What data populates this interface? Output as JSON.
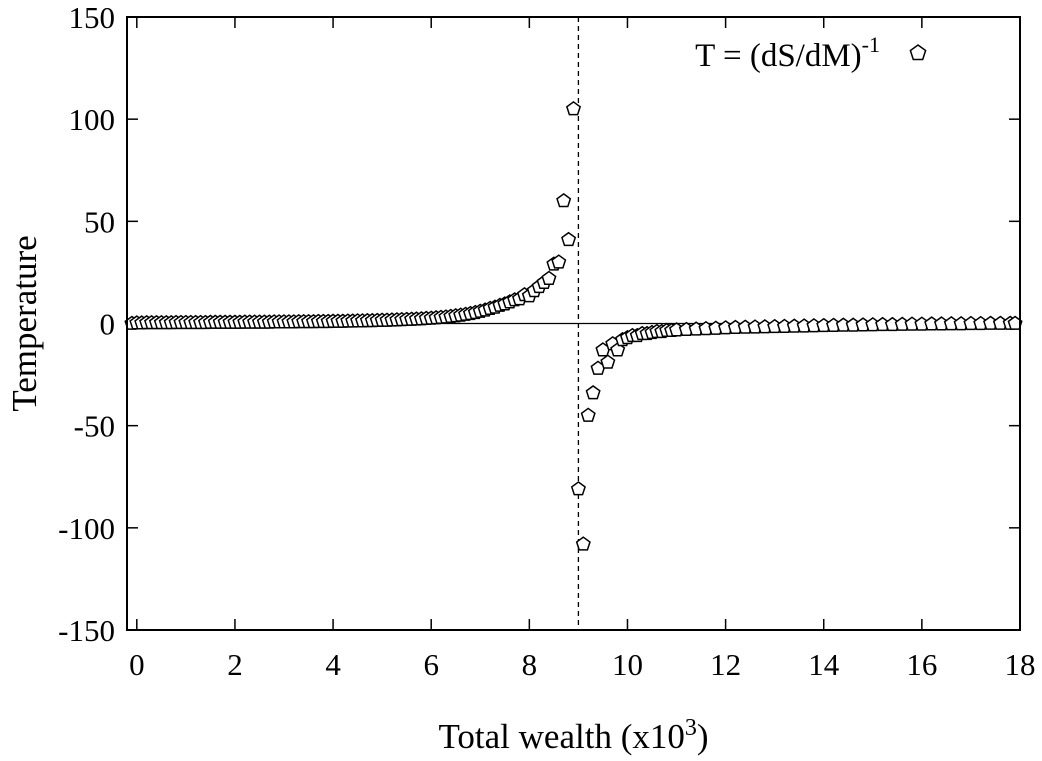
{
  "chart_data": {
    "type": "scatter",
    "xlabel": "Total wealth (x10",
    "xlabel_superscript": "3",
    "xlabel_suffix": ")",
    "ylabel": "Temperature",
    "xlim": [
      -0.2,
      18
    ],
    "ylim": [
      -150,
      150
    ],
    "x_ticks": [
      0,
      2,
      4,
      6,
      8,
      10,
      12,
      14,
      16,
      18
    ],
    "y_ticks": [
      150,
      100,
      50,
      0,
      -50,
      -100,
      -150
    ],
    "y_tick_labels": [
      "150",
      "100",
      "50",
      "0",
      "-50",
      "-100",
      "-150"
    ],
    "x_tick_labels": [
      "0",
      "2",
      "4",
      "6",
      "8",
      "10",
      "12",
      "14",
      "16",
      "18"
    ],
    "grid": false,
    "legend_position": "top-right",
    "reference_lines": {
      "horizontal_y": 0,
      "vertical_dashed_x": 9
    },
    "series": [
      {
        "name": "T = (dS/dM)",
        "name_superscript": "-1",
        "marker": "open-pentagon",
        "color": "#000000",
        "x": [
          -0.1,
          0.0,
          0.1,
          0.2,
          0.3,
          0.4,
          0.5,
          0.6,
          0.7,
          0.8,
          0.9,
          1.0,
          1.1,
          1.2,
          1.3,
          1.4,
          1.5,
          1.6,
          1.7,
          1.8,
          1.9,
          2.0,
          2.1,
          2.2,
          2.3,
          2.4,
          2.5,
          2.6,
          2.7,
          2.8,
          2.9,
          3.0,
          3.1,
          3.2,
          3.3,
          3.4,
          3.5,
          3.6,
          3.7,
          3.8,
          3.9,
          4.0,
          4.1,
          4.2,
          4.3,
          4.4,
          4.5,
          4.6,
          4.7,
          4.8,
          4.9,
          5.0,
          5.1,
          5.2,
          5.3,
          5.4,
          5.5,
          5.6,
          5.7,
          5.8,
          5.9,
          6.0,
          6.1,
          6.2,
          6.3,
          6.4,
          6.5,
          6.6,
          6.7,
          6.8,
          6.9,
          7.0,
          7.1,
          7.2,
          7.3,
          7.4,
          7.5,
          7.6,
          7.7,
          7.8,
          7.9,
          8.0,
          8.1,
          8.2,
          8.3,
          8.4,
          8.5,
          8.6,
          8.7,
          8.8,
          8.9,
          9.0,
          9.1,
          9.2,
          9.3,
          9.4,
          9.5,
          9.6,
          9.7,
          9.8,
          9.9,
          10.0,
          10.1,
          10.2,
          10.3,
          10.4,
          10.5,
          10.6,
          10.7,
          10.8,
          10.9,
          11.0,
          11.2,
          11.4,
          11.6,
          11.8,
          12.0,
          12.2,
          12.4,
          12.6,
          12.8,
          13.0,
          13.2,
          13.4,
          13.6,
          13.8,
          14.0,
          14.2,
          14.4,
          14.6,
          14.8,
          15.0,
          15.2,
          15.4,
          15.6,
          15.8,
          16.0,
          16.2,
          16.4,
          16.6,
          16.8,
          17.0,
          17.2,
          17.4,
          17.6,
          17.8,
          17.9
        ],
        "y": [
          0.0,
          0.2,
          0.2,
          0.3,
          0.3,
          0.3,
          0.3,
          0.3,
          0.3,
          0.4,
          0.4,
          0.4,
          0.4,
          0.4,
          0.4,
          0.4,
          0.5,
          0.5,
          0.5,
          0.5,
          0.5,
          0.5,
          0.5,
          0.6,
          0.6,
          0.6,
          0.6,
          0.6,
          0.6,
          0.7,
          0.7,
          0.7,
          0.7,
          0.7,
          0.8,
          0.8,
          0.8,
          0.8,
          0.9,
          0.9,
          0.9,
          1.0,
          1.0,
          1.0,
          1.1,
          1.1,
          1.2,
          1.2,
          1.3,
          1.3,
          1.4,
          1.5,
          1.5,
          1.6,
          1.7,
          1.8,
          1.9,
          2.0,
          2.1,
          2.2,
          2.4,
          2.5,
          2.7,
          2.9,
          3.1,
          3.4,
          3.7,
          4.0,
          4.4,
          4.8,
          5.3,
          5.9,
          6.5,
          7.3,
          7.9,
          8.8,
          9.5,
          10.5,
          11.5,
          12.0,
          14.0,
          13.5,
          16.0,
          18.0,
          20.0,
          22.0,
          29.0,
          30.0,
          60.0,
          41.0,
          105.0,
          -81.0,
          -108.0,
          -45.0,
          -34.0,
          -22.0,
          -13.0,
          -19.0,
          -10.0,
          -13.0,
          -8.0,
          -7.0,
          -6.0,
          -6.0,
          -5.0,
          -5.0,
          -4.5,
          -4.0,
          -4.0,
          -3.5,
          -3.5,
          -3.2,
          -3.0,
          -2.8,
          -2.6,
          -2.4,
          -2.2,
          -2.0,
          -1.9,
          -1.8,
          -1.7,
          -1.6,
          -1.5,
          -1.4,
          -1.3,
          -1.2,
          -1.1,
          -1.0,
          -0.9,
          -0.9,
          -0.8,
          -0.7,
          -0.6,
          -0.6,
          -0.5,
          -0.4,
          -0.4,
          -0.3,
          -0.3,
          -0.2,
          -0.2,
          -0.1,
          -0.1,
          0.0,
          0.0,
          0.0,
          0.0
        ]
      }
    ]
  }
}
